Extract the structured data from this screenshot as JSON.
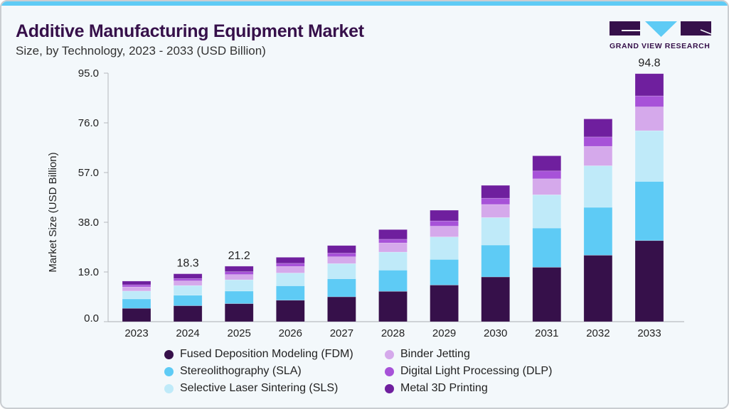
{
  "title": "Additive Manufacturing Equipment Market",
  "subtitle": "Size, by Technology, 2023 - 2033 (USD Billion)",
  "logo": {
    "text": "GRAND VIEW RESEARCH",
    "colors": {
      "dark": "#36104a",
      "accent": "#5ecbf5"
    }
  },
  "chart_data": {
    "type": "bar",
    "stacked": true,
    "title": "Additive Manufacturing Equipment Market",
    "ylabel": "Market Size (USD Billion)",
    "xlabel": "",
    "ylim": [
      0,
      95
    ],
    "yticks": [
      "0.0",
      "19.0",
      "38.0",
      "57.0",
      "76.0",
      "95.0"
    ],
    "ytick_values": [
      0,
      19,
      38,
      57,
      76,
      95
    ],
    "grid": false,
    "legend_position": "bottom",
    "categories": [
      "2023",
      "2024",
      "2025",
      "2026",
      "2027",
      "2028",
      "2029",
      "2030",
      "2031",
      "2032",
      "2033"
    ],
    "series": [
      {
        "name": "Fused Deposition Modeling (FDM)",
        "color": "#36104a",
        "values": [
          5.1,
          6.1,
          6.9,
          8.2,
          9.5,
          11.6,
          14.0,
          17.1,
          20.8,
          25.4,
          31.0
        ]
      },
      {
        "name": "Stereolithography (SLA)",
        "color": "#5ecbf5",
        "values": [
          3.6,
          4.0,
          4.8,
          5.5,
          6.9,
          8.1,
          9.8,
          12.2,
          15.0,
          18.3,
          22.6
        ]
      },
      {
        "name": "Selective Laser Sintering (SLS)",
        "color": "#bfeaf9",
        "values": [
          3.0,
          3.7,
          4.3,
          4.9,
          5.8,
          6.9,
          8.6,
          10.5,
          12.7,
          15.9,
          19.4
        ]
      },
      {
        "name": "Binder Jetting",
        "color": "#d5a9eb",
        "values": [
          1.6,
          1.8,
          2.0,
          2.5,
          2.6,
          3.5,
          4.1,
          5.0,
          6.1,
          7.4,
          9.1
        ]
      },
      {
        "name": "Digital Light Processing (DLP)",
        "color": "#a752d8",
        "values": [
          0.8,
          0.9,
          1.1,
          1.2,
          1.4,
          1.4,
          2.0,
          2.4,
          3.0,
          3.6,
          4.2
        ]
      },
      {
        "name": "Metal 3D Printing",
        "color": "#6f1f9e",
        "values": [
          1.4,
          1.8,
          2.1,
          2.3,
          2.9,
          3.7,
          4.1,
          4.9,
          5.8,
          6.9,
          8.5
        ]
      }
    ],
    "data_labels": [
      {
        "category": "2024",
        "text": "18.3"
      },
      {
        "category": "2025",
        "text": "21.2"
      },
      {
        "category": "2033",
        "text": "94.8"
      }
    ]
  }
}
